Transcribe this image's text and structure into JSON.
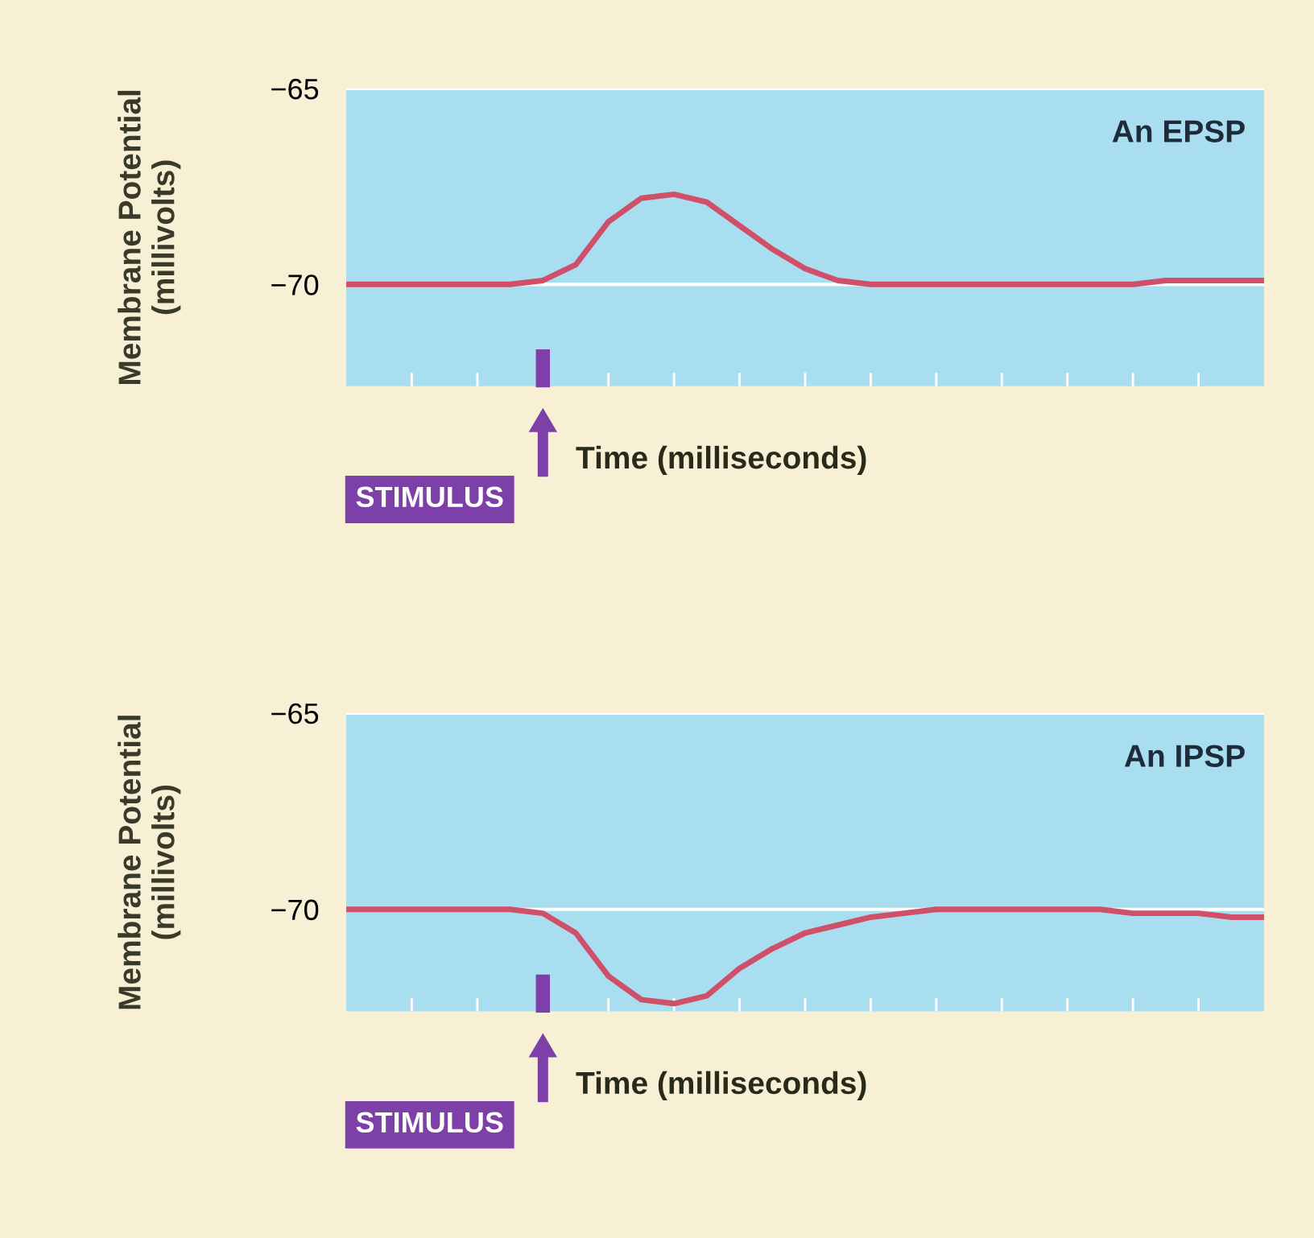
{
  "chart_data": [
    {
      "type": "line",
      "title": "An EPSP",
      "ylabel": "Membrane Potential\n(millivolts)",
      "xlabel": "Time (milliseconds)",
      "annotations": [
        "STIMULUS"
      ],
      "categories": [
        null,
        null,
        null,
        null,
        null,
        null,
        null,
        null,
        null,
        null,
        null,
        null,
        null,
        null,
        null,
        null,
        null,
        null,
        null,
        null,
        null,
        null,
        null,
        null,
        null,
        null,
        null,
        null,
        null
      ],
      "series": [
        {
          "color": "#d0506a",
          "values": [
            -70,
            -70,
            -70,
            -70,
            -70,
            -70,
            -69.9,
            -69.5,
            -68.4,
            -67.8,
            -67.7,
            -67.9,
            -68.5,
            -69.1,
            -69.6,
            -69.9,
            -70,
            -70,
            -70,
            -70,
            -70,
            -70,
            -70,
            -70,
            -70,
            -69.9,
            -69.9,
            -69.9,
            -69.9
          ]
        }
      ],
      "ylim": [
        -72.6,
        -65
      ],
      "yticks": [
        -65,
        -70
      ],
      "grid": "y",
      "tick_labels": "y",
      "marker": "none",
      "line_style": "solid"
    },
    {
      "type": "line",
      "title": "An IPSP",
      "ylabel": "Membrane Potential\n(millivolts)",
      "xlabel": "Time (milliseconds)",
      "annotations": [
        "STIMULUS"
      ],
      "categories": [
        null,
        null,
        null,
        null,
        null,
        null,
        null,
        null,
        null,
        null,
        null,
        null,
        null,
        null,
        null,
        null,
        null,
        null,
        null,
        null,
        null,
        null,
        null,
        null,
        null,
        null,
        null,
        null,
        null
      ],
      "series": [
        {
          "color": "#d0506a",
          "values": [
            -70,
            -70,
            -70,
            -70,
            -70,
            -70,
            -70.1,
            -70.6,
            -71.7,
            -72.3,
            -72.4,
            -72.2,
            -71.5,
            -71,
            -70.6,
            -70.4,
            -70.2,
            -70.1,
            -70,
            -70,
            -70,
            -70,
            -70,
            -70,
            -70.1,
            -70.1,
            -70.1,
            -70.2,
            -70.2
          ]
        }
      ],
      "ylim": [
        -72.6,
        -65
      ],
      "yticks": [
        -65,
        -70
      ],
      "grid": "y",
      "tick_labels": "y",
      "marker": "none",
      "line_style": "solid"
    }
  ]
}
